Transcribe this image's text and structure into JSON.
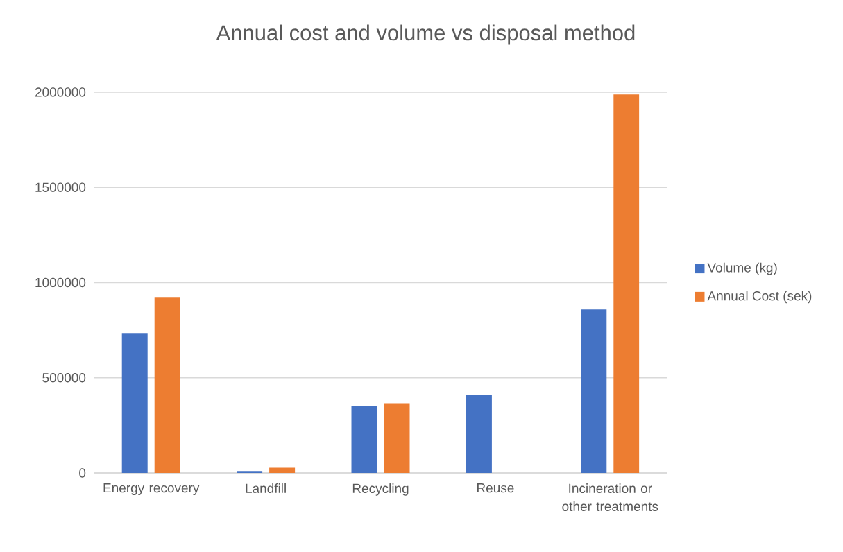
{
  "chart_data": {
    "type": "bar",
    "title": "Annual cost and volume vs disposal method",
    "categories": [
      "Energy recovery",
      "Landfill",
      "Recycling",
      "Reuse",
      "Incineration or other treatments"
    ],
    "series": [
      {
        "name": "Volume (kg)",
        "color": "#4472c4",
        "values": [
          735000,
          10000,
          352000,
          410000,
          859000
        ]
      },
      {
        "name": "Annual Cost (sek)",
        "color": "#ed7d31",
        "values": [
          921000,
          27000,
          366000,
          null,
          1988000
        ]
      }
    ],
    "ylim": [
      0,
      2000000
    ],
    "yticks": [
      0,
      500000,
      1000000,
      1500000,
      2000000
    ],
    "grid": "y",
    "legend": "right"
  }
}
